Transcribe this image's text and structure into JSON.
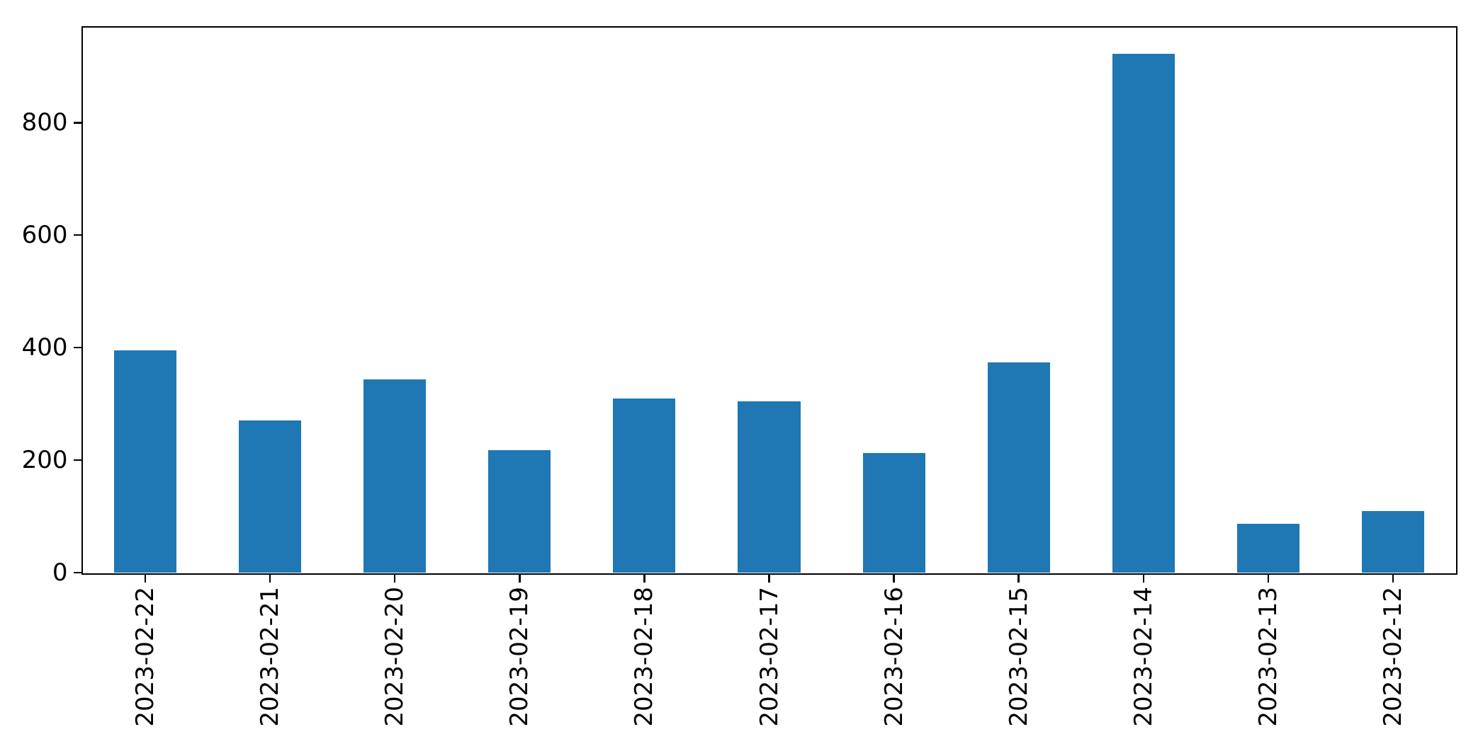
{
  "chart_data": {
    "type": "bar",
    "title": "",
    "xlabel": "",
    "ylabel": "",
    "categories": [
      "2023-02-22",
      "2023-02-21",
      "2023-02-20",
      "2023-02-19",
      "2023-02-18",
      "2023-02-17",
      "2023-02-16",
      "2023-02-15",
      "2023-02-14",
      "2023-02-13",
      "2023-02-12"
    ],
    "values": [
      395,
      270,
      343,
      218,
      310,
      304,
      213,
      374,
      922,
      87,
      109
    ],
    "yticks": [
      0,
      200,
      400,
      600,
      800
    ],
    "ylim": [
      0,
      969
    ],
    "bar_color": "#1f77b4",
    "axis_color": "#000000",
    "tick_label_color": "#000000",
    "background_color": "#ffffff",
    "bar_width_fraction": 0.5,
    "x_tick_label_rotation": 90,
    "grid": false,
    "legend": false
  }
}
